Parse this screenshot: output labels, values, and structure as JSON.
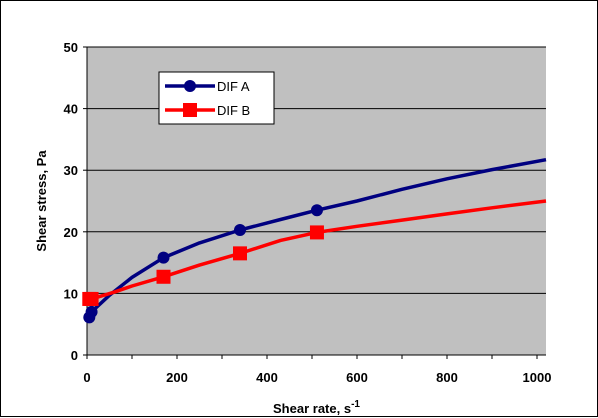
{
  "chart_data": {
    "type": "line",
    "title": "",
    "xlabel": "Shear rate, s",
    "xlabel_superscript": "-1",
    "ylabel": "Shear stress, Pa",
    "xlim": [
      0,
      1020
    ],
    "ylim": [
      0,
      50
    ],
    "xticks": [
      "0",
      "200",
      "400",
      "600",
      "800",
      "1000"
    ],
    "yticks": [
      "0",
      "10",
      "20",
      "30",
      "40",
      "50"
    ],
    "grid": true,
    "legend_position": "upper-left",
    "plot_background": "#c0c0c0",
    "series": [
      {
        "name": "DIF A",
        "color": "#000080",
        "marker": "circle",
        "marker_points": [
          [
            5.1,
            6.1
          ],
          [
            10.2,
            7.0
          ],
          [
            170,
            15.8
          ],
          [
            340,
            20.3
          ],
          [
            511,
            23.5
          ]
        ],
        "curve": [
          [
            5.1,
            6.1
          ],
          [
            10.2,
            7.0
          ],
          [
            50,
            9.7
          ],
          [
            100,
            12.6
          ],
          [
            170,
            15.8
          ],
          [
            250,
            18.2
          ],
          [
            340,
            20.3
          ],
          [
            430,
            22.0
          ],
          [
            511,
            23.5
          ],
          [
            600,
            25.0
          ],
          [
            700,
            26.9
          ],
          [
            800,
            28.6
          ],
          [
            900,
            30.1
          ],
          [
            1020,
            31.7
          ]
        ]
      },
      {
        "name": "DIF B",
        "color": "#ff0000",
        "marker": "square",
        "marker_points": [
          [
            5.1,
            9.1
          ],
          [
            10.2,
            9.1
          ],
          [
            170,
            12.7
          ],
          [
            340,
            16.5
          ],
          [
            511,
            19.9
          ]
        ],
        "curve": [
          [
            5.1,
            9.1
          ],
          [
            10.2,
            9.1
          ],
          [
            60,
            10.2
          ],
          [
            100,
            11.2
          ],
          [
            170,
            12.7
          ],
          [
            250,
            14.6
          ],
          [
            340,
            16.5
          ],
          [
            430,
            18.6
          ],
          [
            511,
            19.9
          ],
          [
            600,
            20.9
          ],
          [
            700,
            21.9
          ],
          [
            800,
            22.9
          ],
          [
            900,
            23.9
          ],
          [
            1020,
            25.0
          ]
        ]
      }
    ]
  }
}
